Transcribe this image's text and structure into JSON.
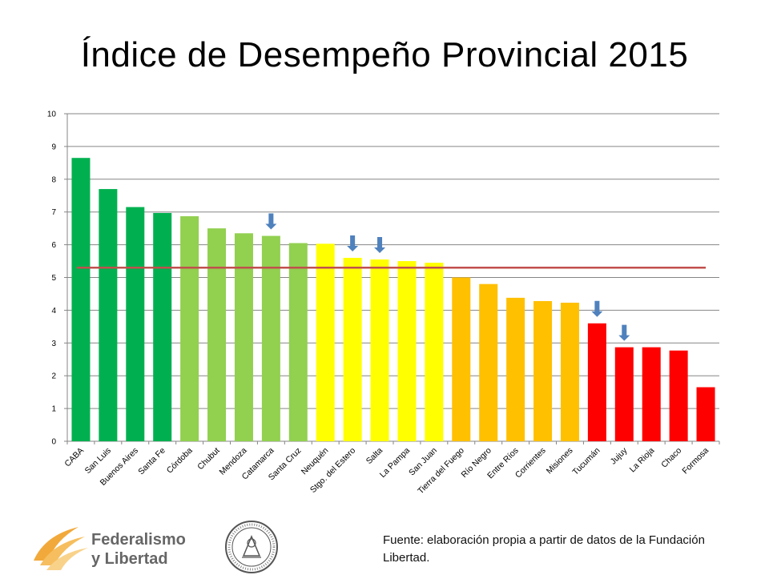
{
  "title": "Índice de Desempeño Provincial 2015",
  "source_text": "Fuente: elaboración propia a partir de datos de la Fundación Libertad.",
  "logo": {
    "line1": "Federalismo",
    "line2": "y Libertad"
  },
  "colors": {
    "dark_green": "#00B050",
    "light_green": "#92D050",
    "yellow": "#FFFF00",
    "orange": "#FFC000",
    "red": "#FF0000",
    "average_line": "#C0504D",
    "arrow": "#4F81BD",
    "grid": "#868686"
  },
  "chart_data": {
    "type": "bar",
    "categories": [
      "CABA",
      "San Luis",
      "Buenos Aires",
      "Santa Fe",
      "Córdoba",
      "Chubut",
      "Mendoza",
      "Catamarca",
      "Santa Cruz",
      "Neuquén",
      "Stgo. del Estero",
      "Salta",
      "La Pampa",
      "San Juan",
      "Tierra del Fuego",
      "Río Negro",
      "Entre Ríos",
      "Corrientes",
      "Misiones",
      "Tucumán",
      "Jujuy",
      "La Rioja",
      "Chaco",
      "Formosa"
    ],
    "values": [
      8.65,
      7.7,
      7.15,
      6.97,
      6.87,
      6.5,
      6.35,
      6.27,
      6.05,
      6.03,
      5.6,
      5.55,
      5.5,
      5.45,
      5.0,
      4.8,
      4.38,
      4.28,
      4.23,
      3.6,
      2.87,
      2.87,
      2.77,
      1.65
    ],
    "bar_colors": [
      "dark_green",
      "dark_green",
      "dark_green",
      "dark_green",
      "light_green",
      "light_green",
      "light_green",
      "light_green",
      "light_green",
      "yellow",
      "yellow",
      "yellow",
      "yellow",
      "yellow",
      "orange",
      "orange",
      "orange",
      "orange",
      "orange",
      "red",
      "red",
      "red",
      "red",
      "red"
    ],
    "average_line": 5.3,
    "arrow_markers": [
      "Catamarca",
      "Stgo. del Estero",
      "Salta",
      "Tucumán",
      "Jujuy"
    ],
    "ylim": [
      0,
      10
    ],
    "yticks": [
      0,
      1,
      2,
      3,
      4,
      5,
      6,
      7,
      8,
      9,
      10
    ],
    "grid": true,
    "legend": false,
    "xlabel": "",
    "ylabel": ""
  }
}
